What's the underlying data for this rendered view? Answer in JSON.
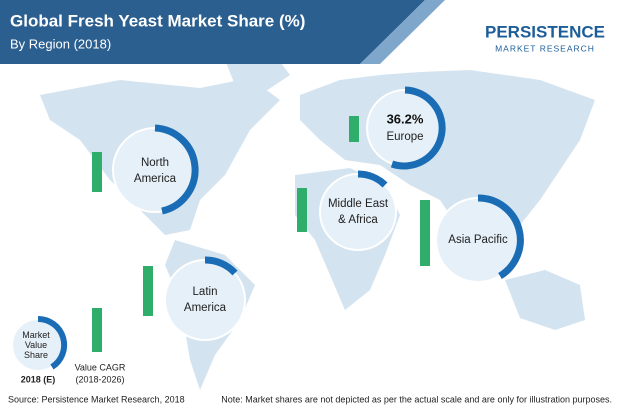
{
  "header": {
    "title": "Global Fresh Yeast Market Share (%)",
    "subtitle": "By Region (2018)"
  },
  "logo": {
    "name": "PERSISTENCE",
    "tagline": "MARKET RESEARCH"
  },
  "regions": [
    {
      "label": "North America"
    },
    {
      "label": "Europe",
      "value": "36.2%"
    },
    {
      "label": "Middle East & Africa"
    },
    {
      "label": "Asia Pacific"
    },
    {
      "label": "Latin America"
    }
  ],
  "legend": {
    "share": "Market Value Share",
    "year": "2018 (E)",
    "cagr": "Value CAGR",
    "period": "(2018-2026)"
  },
  "footer": {
    "source": "Source: Persistence Market Research, 2018",
    "note": "Note: Market shares are not depicted as per the actual scale and are only for illustration purposes."
  }
}
